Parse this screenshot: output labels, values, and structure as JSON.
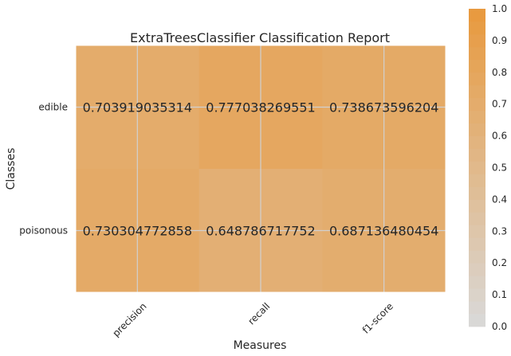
{
  "chart_data": {
    "type": "heatmap",
    "title": "ExtraTreesClassifier Classification Report",
    "xlabel": "Measures",
    "ylabel": "Classes",
    "x_categories": [
      "precision",
      "recall",
      "f1-score"
    ],
    "y_categories": [
      "edible",
      "poisonous"
    ],
    "values": [
      [
        0.703919035314,
        0.777038269551,
        0.738673596204
      ],
      [
        0.730304772858,
        0.648786717752,
        0.687136480454
      ]
    ],
    "value_labels": [
      [
        "0.703919035314",
        "0.777038269551",
        "0.738673596204"
      ],
      [
        "0.730304772858",
        "0.648786717752",
        "0.687136480454"
      ]
    ],
    "colorbar": {
      "range": [
        0.0,
        1.0
      ],
      "ticks": [
        "0.0",
        "0.1",
        "0.2",
        "0.3",
        "0.4",
        "0.5",
        "0.6",
        "0.7",
        "0.8",
        "0.9",
        "1.0"
      ],
      "colors": [
        "#d9d9d9",
        "#e8993d"
      ]
    },
    "grid": true
  }
}
